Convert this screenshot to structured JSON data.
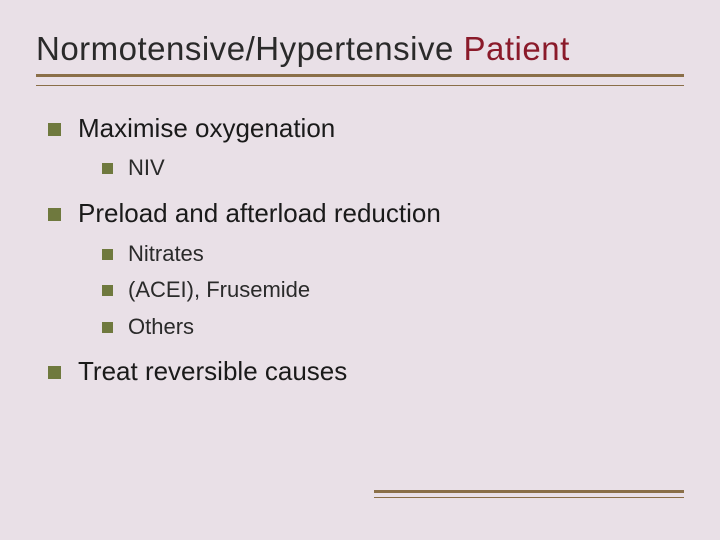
{
  "colors": {
    "background": "#e9e0e7",
    "title_text": "#2a2a2a",
    "title_accent": "#8a1a2a",
    "rule_color": "#8a6f48",
    "bullet_color": "#6f793e",
    "body_text": "#1a1a1a"
  },
  "typography": {
    "title_fontsize_pt": 25,
    "level1_fontsize_pt": 20,
    "level2_fontsize_pt": 17,
    "font_family": "Arial"
  },
  "title": {
    "main": "Normotensive/Hypertensive",
    "accent": "Patient"
  },
  "bullets": [
    {
      "label": "Maximise oxygenation",
      "children": [
        {
          "label": "NIV"
        }
      ]
    },
    {
      "label": "Preload and afterload reduction",
      "children": [
        {
          "label": "Nitrates"
        },
        {
          "label": "(ACEI), Frusemide"
        },
        {
          "label": "Others"
        }
      ]
    },
    {
      "label": "Treat reversible causes",
      "children": []
    }
  ]
}
